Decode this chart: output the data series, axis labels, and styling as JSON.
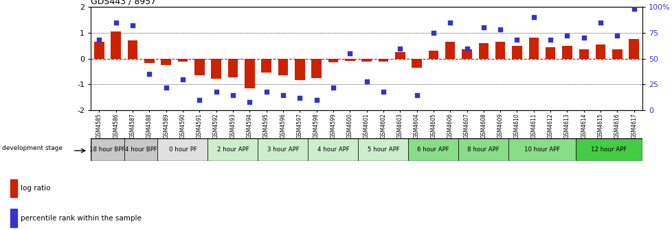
{
  "title": "GDS443 / 8957",
  "samples": [
    "GSM4585",
    "GSM4586",
    "GSM4587",
    "GSM4588",
    "GSM4589",
    "GSM4590",
    "GSM4591",
    "GSM4592",
    "GSM4593",
    "GSM4594",
    "GSM4595",
    "GSM4596",
    "GSM4597",
    "GSM4598",
    "GSM4599",
    "GSM4600",
    "GSM4601",
    "GSM4602",
    "GSM4603",
    "GSM4604",
    "GSM4605",
    "GSM4606",
    "GSM4607",
    "GSM4608",
    "GSM4609",
    "GSM4610",
    "GSM4611",
    "GSM4612",
    "GSM4613",
    "GSM4614",
    "GSM4615",
    "GSM4616",
    "GSM4617"
  ],
  "log_ratio": [
    0.65,
    1.05,
    0.7,
    -0.18,
    -0.25,
    -0.12,
    -0.65,
    -0.78,
    -0.72,
    -1.15,
    -0.55,
    -0.65,
    -0.82,
    -0.75,
    -0.15,
    -0.08,
    -0.12,
    -0.12,
    0.25,
    -0.35,
    0.3,
    0.65,
    0.35,
    0.6,
    0.65,
    0.5,
    0.8,
    0.45,
    0.5,
    0.35,
    0.55,
    0.35,
    0.75
  ],
  "percentile": [
    68,
    85,
    82,
    35,
    22,
    30,
    10,
    18,
    15,
    8,
    18,
    15,
    12,
    10,
    22,
    55,
    28,
    18,
    60,
    15,
    75,
    85,
    60,
    80,
    78,
    68,
    90,
    68,
    72,
    70,
    85,
    72,
    98
  ],
  "stage_groups": [
    {
      "label": "18 hour BPF",
      "start": 0,
      "end": 1,
      "color": "#c8c8c8"
    },
    {
      "label": "4 hour BPF",
      "start": 2,
      "end": 3,
      "color": "#c8c8c8"
    },
    {
      "label": "0 hour PF",
      "start": 4,
      "end": 6,
      "color": "#e0e0e0"
    },
    {
      "label": "2 hour APF",
      "start": 7,
      "end": 9,
      "color": "#cceecc"
    },
    {
      "label": "3 hour APF",
      "start": 10,
      "end": 12,
      "color": "#cceecc"
    },
    {
      "label": "4 hour APF",
      "start": 13,
      "end": 15,
      "color": "#cceecc"
    },
    {
      "label": "5 hour APF",
      "start": 16,
      "end": 18,
      "color": "#cceecc"
    },
    {
      "label": "6 hour APF",
      "start": 19,
      "end": 21,
      "color": "#88dd88"
    },
    {
      "label": "8 hour APF",
      "start": 22,
      "end": 24,
      "color": "#88dd88"
    },
    {
      "label": "10 hour APF",
      "start": 25,
      "end": 28,
      "color": "#88dd88"
    },
    {
      "label": "12 hour APF",
      "start": 29,
      "end": 32,
      "color": "#44cc44"
    }
  ],
  "bar_color": "#cc2200",
  "dot_color": "#3333cc",
  "ylim": [
    -2,
    2
  ],
  "y2lim": [
    0,
    100
  ],
  "yticks": [
    -2,
    -1,
    0,
    1,
    2
  ],
  "y2ticks": [
    0,
    25,
    50,
    75,
    100
  ],
  "hline_color": "#dd0000",
  "dotline_color": "black"
}
